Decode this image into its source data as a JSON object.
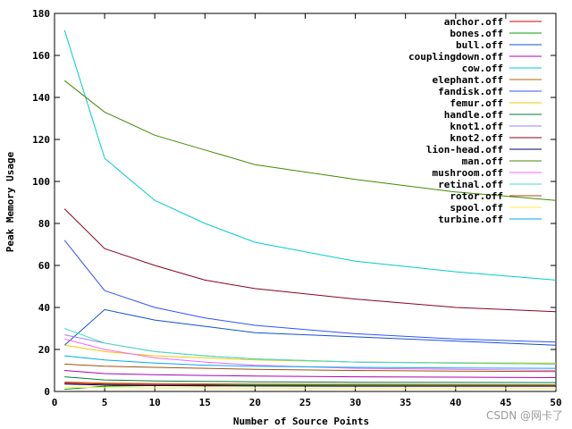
{
  "chart_data": {
    "type": "line",
    "title": "",
    "xlabel": "Number of Source Points",
    "ylabel": "Peak Memory Usage",
    "xlim": [
      0,
      50
    ],
    "ylim": [
      0,
      180
    ],
    "xticks": [
      0,
      5,
      10,
      15,
      20,
      25,
      30,
      35,
      40,
      45,
      50
    ],
    "yticks": [
      0,
      20,
      40,
      60,
      80,
      100,
      120,
      140,
      160,
      180
    ],
    "grid": false,
    "legend_position": "top-right",
    "x": [
      1,
      5,
      10,
      15,
      20,
      30,
      40,
      50
    ],
    "series": [
      {
        "name": "anchor.off",
        "color": "#cc0000",
        "values": [
          4,
          3.5,
          3.3,
          3.2,
          3.1,
          3.0,
          3.0,
          3.0
        ]
      },
      {
        "name": "bones.off",
        "color": "#00a000",
        "values": [
          1,
          2.5,
          2.8,
          2.9,
          3.0,
          3.0,
          3.0,
          3.0
        ]
      },
      {
        "name": "bull.off",
        "color": "#1050d0",
        "values": [
          22,
          39,
          34,
          31,
          28,
          26,
          24,
          22
        ]
      },
      {
        "name": "couplingdown.off",
        "color": "#b000b0",
        "values": [
          10,
          8.5,
          8,
          7.6,
          7.3,
          7,
          6.8,
          6.6
        ]
      },
      {
        "name": "cow.off",
        "color": "#00cccc",
        "values": [
          172,
          111,
          91,
          80,
          71,
          62,
          57,
          53
        ]
      },
      {
        "name": "elephant.off",
        "color": "#bb6000",
        "values": [
          4.5,
          4,
          3.8,
          3.6,
          3.5,
          3.4,
          3.3,
          3.2
        ]
      },
      {
        "name": "fandisk.off",
        "color": "#3050ff",
        "values": [
          72,
          48,
          40,
          35,
          31.5,
          27.5,
          25,
          23.5
        ]
      },
      {
        "name": "femur.off",
        "color": "#eecc00",
        "values": [
          22,
          19,
          17,
          16,
          15,
          14,
          13.7,
          13.5
        ]
      },
      {
        "name": "handle.off",
        "color": "#007a40",
        "values": [
          7,
          5.5,
          5,
          4.8,
          4.6,
          4.4,
          4.3,
          4.2
        ]
      },
      {
        "name": "knot1.off",
        "color": "#9980ff",
        "values": [
          27,
          23,
          19,
          17,
          15.5,
          14,
          13.5,
          13
        ]
      },
      {
        "name": "knot2.off",
        "color": "#880022",
        "values": [
          87,
          68,
          60,
          53,
          49,
          44,
          40,
          38
        ]
      },
      {
        "name": "lion-head.off",
        "color": "#000066",
        "values": [
          3.5,
          3,
          2.8,
          2.7,
          2.6,
          2.5,
          2.5,
          2.5
        ]
      },
      {
        "name": "man.off",
        "color": "#448800",
        "values": [
          148,
          133,
          122,
          115,
          108,
          101,
          95,
          91
        ]
      },
      {
        "name": "mushroom.off",
        "color": "#ff60ff",
        "values": [
          25,
          20,
          16,
          14,
          12.5,
          11,
          10.5,
          10
        ]
      },
      {
        "name": "retinal.off",
        "color": "#40e0c0",
        "values": [
          30,
          23,
          19,
          17,
          15.5,
          14,
          13.5,
          13
        ]
      },
      {
        "name": "rotor.off",
        "color": "#a05010",
        "values": [
          13,
          12,
          11.5,
          11,
          10.5,
          10,
          9.7,
          9.5
        ]
      },
      {
        "name": "spool.off",
        "color": "#ffee44",
        "values": [
          2,
          1.8,
          1.7,
          1.7,
          1.6,
          1.6,
          1.6,
          1.6
        ]
      },
      {
        "name": "turbine.off",
        "color": "#00aaee",
        "values": [
          17,
          15,
          13.5,
          12.5,
          12,
          11.5,
          11.2,
          11
        ]
      }
    ]
  },
  "watermark": "CSDN @网卡了"
}
